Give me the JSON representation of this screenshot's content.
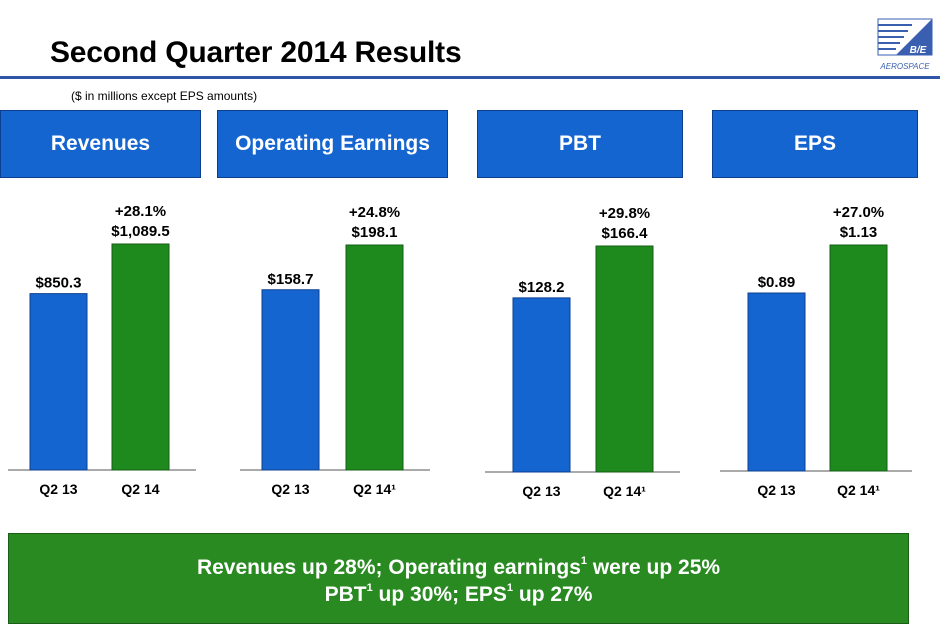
{
  "slide": {
    "title": "Second Quarter 2014 Results",
    "subtitle": "($ in millions except EPS amounts)",
    "logo_text": "B/E",
    "logo_subtext": "AEROSPACE"
  },
  "banner": {
    "line1_a": "Revenues up 28%; Operating earnings",
    "line1_sup": "1",
    "line1_b": " were up 25%",
    "line2_a": "PBT",
    "line2_sup1": "1",
    "line2_b": " up 30%; EPS",
    "line2_sup2": "1",
    "line2_c": " up 27%"
  },
  "colors": {
    "header_blue": "#1565d0",
    "bar_blue": "#1565d0",
    "bar_green": "#1e8a1e",
    "banner_green": "#2a8a22",
    "rule_blue": "#2f55a8"
  },
  "chart_data": [
    {
      "type": "bar",
      "title": "Revenues",
      "categories": [
        "Q2 13",
        "Q2 14"
      ],
      "values": [
        850.3,
        1089.5
      ],
      "value_labels": [
        "$850.3",
        "$1,089.5"
      ],
      "growth_label": "+28.1%",
      "xlabel": "",
      "ylabel": "",
      "grid": false
    },
    {
      "type": "bar",
      "title": "Operating Earnings",
      "categories": [
        "Q2 13",
        "Q2 14¹"
      ],
      "values": [
        158.7,
        198.1
      ],
      "value_labels": [
        "$158.7",
        "$198.1"
      ],
      "growth_label": "+24.8%",
      "xlabel": "",
      "ylabel": "",
      "grid": false
    },
    {
      "type": "bar",
      "title": "PBT",
      "categories": [
        "Q2 13",
        "Q2 14¹"
      ],
      "values": [
        128.2,
        166.4
      ],
      "value_labels": [
        "$128.2",
        "$166.4"
      ],
      "growth_label": "+29.8%",
      "xlabel": "",
      "ylabel": "",
      "grid": false
    },
    {
      "type": "bar",
      "title": "EPS",
      "categories": [
        "Q2 13",
        "Q2 14¹"
      ],
      "values": [
        0.89,
        1.13
      ],
      "value_labels": [
        "$0.89",
        "$1.13"
      ],
      "growth_label": "+27.0%",
      "xlabel": "",
      "ylabel": "",
      "grid": false
    }
  ]
}
